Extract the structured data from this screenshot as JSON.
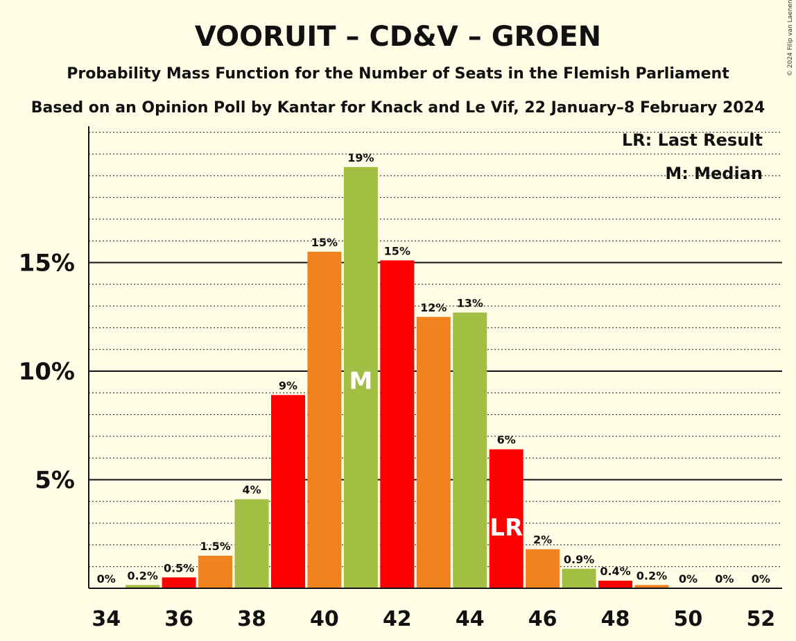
{
  "chart_data": {
    "type": "bar",
    "title": "VOORUIT – CD&V – GROEN",
    "subtitle": "Probability Mass Function for the Number of Seats in the Flemish Parliament",
    "subtitle2": "Based on an Opinion Poll by Kantar for Knack and Le Vif, 22 January–8 February 2024",
    "credit": "© 2024 Filip van Laenen",
    "legend": {
      "lr": "LR: Last Result",
      "m": "M: Median",
      "position": "top-right"
    },
    "xlabel": "",
    "ylabel": "",
    "ylim": [
      0,
      21
    ],
    "yticks": [
      {
        "value": 5,
        "label": "5%"
      },
      {
        "value": 10,
        "label": "10%"
      },
      {
        "value": 15,
        "label": "15%"
      }
    ],
    "xticks": [
      "34",
      "36",
      "38",
      "40",
      "42",
      "44",
      "46",
      "48",
      "50",
      "52"
    ],
    "colors": {
      "red": "#ff0000",
      "orange": "#f28120",
      "green": "#a2be43",
      "text": "#111111"
    },
    "bars": [
      {
        "seats": 34,
        "value": 0.0,
        "label": "0%",
        "color": "red"
      },
      {
        "seats": 35,
        "value": 0.15,
        "label": "0.2%",
        "color": "green"
      },
      {
        "seats": 36,
        "value": 0.5,
        "label": "0.5%",
        "color": "red"
      },
      {
        "seats": 37,
        "value": 1.5,
        "label": "1.5%",
        "color": "orange"
      },
      {
        "seats": 38,
        "value": 4.1,
        "label": "4%",
        "color": "green"
      },
      {
        "seats": 39,
        "value": 8.9,
        "label": "9%",
        "color": "red"
      },
      {
        "seats": 40,
        "value": 15.5,
        "label": "15%",
        "color": "orange"
      },
      {
        "seats": 41,
        "value": 19.4,
        "label": "19%",
        "color": "green",
        "marker": "M"
      },
      {
        "seats": 42,
        "value": 15.1,
        "label": "15%",
        "color": "red"
      },
      {
        "seats": 43,
        "value": 12.5,
        "label": "12%",
        "color": "orange"
      },
      {
        "seats": 44,
        "value": 12.7,
        "label": "13%",
        "color": "green"
      },
      {
        "seats": 45,
        "value": 6.4,
        "label": "6%",
        "color": "red",
        "marker": "LR"
      },
      {
        "seats": 46,
        "value": 1.8,
        "label": "2%",
        "color": "orange"
      },
      {
        "seats": 47,
        "value": 0.9,
        "label": "0.9%",
        "color": "green"
      },
      {
        "seats": 48,
        "value": 0.35,
        "label": "0.4%",
        "color": "red"
      },
      {
        "seats": 49,
        "value": 0.15,
        "label": "0.2%",
        "color": "orange"
      },
      {
        "seats": 50,
        "value": 0.0,
        "label": "0%",
        "color": "green"
      },
      {
        "seats": 51,
        "value": 0.0,
        "label": "0%",
        "color": "red"
      },
      {
        "seats": 52,
        "value": 0.0,
        "label": "0%",
        "color": "orange"
      }
    ]
  }
}
